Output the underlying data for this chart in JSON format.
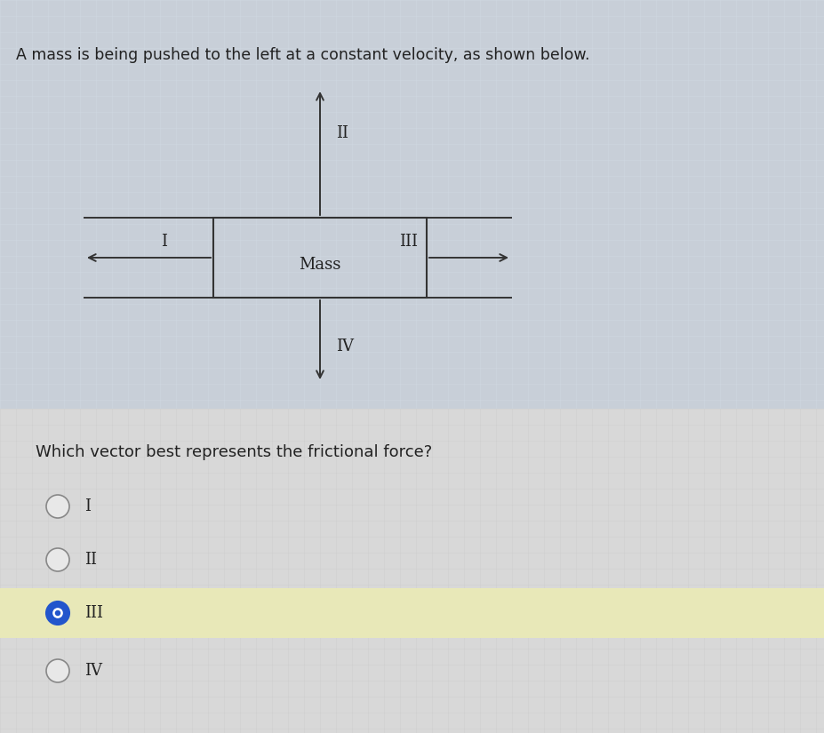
{
  "title": "A mass is being pushed to the left at a constant velocity, as shown below.",
  "title_fontsize": 12.5,
  "question": "Which vector best represents the frictional force?",
  "question_fontsize": 13,
  "options": [
    "I",
    "II",
    "III",
    "IV"
  ],
  "selected_index": 2,
  "bg_color_top": "#c8d4e0",
  "bg_color_bottom": "#dcdcdc",
  "selected_bg_color": "#e8e8b8",
  "box_color": "#333333",
  "arrow_color": "#333333",
  "text_color": "#222222",
  "mass_label": "Mass",
  "radio_color_empty_face": "#e8e8e8",
  "radio_color_empty_edge": "#888888",
  "radio_color_filled": "#2255cc",
  "radio_color_filled_edge": "#2255cc"
}
